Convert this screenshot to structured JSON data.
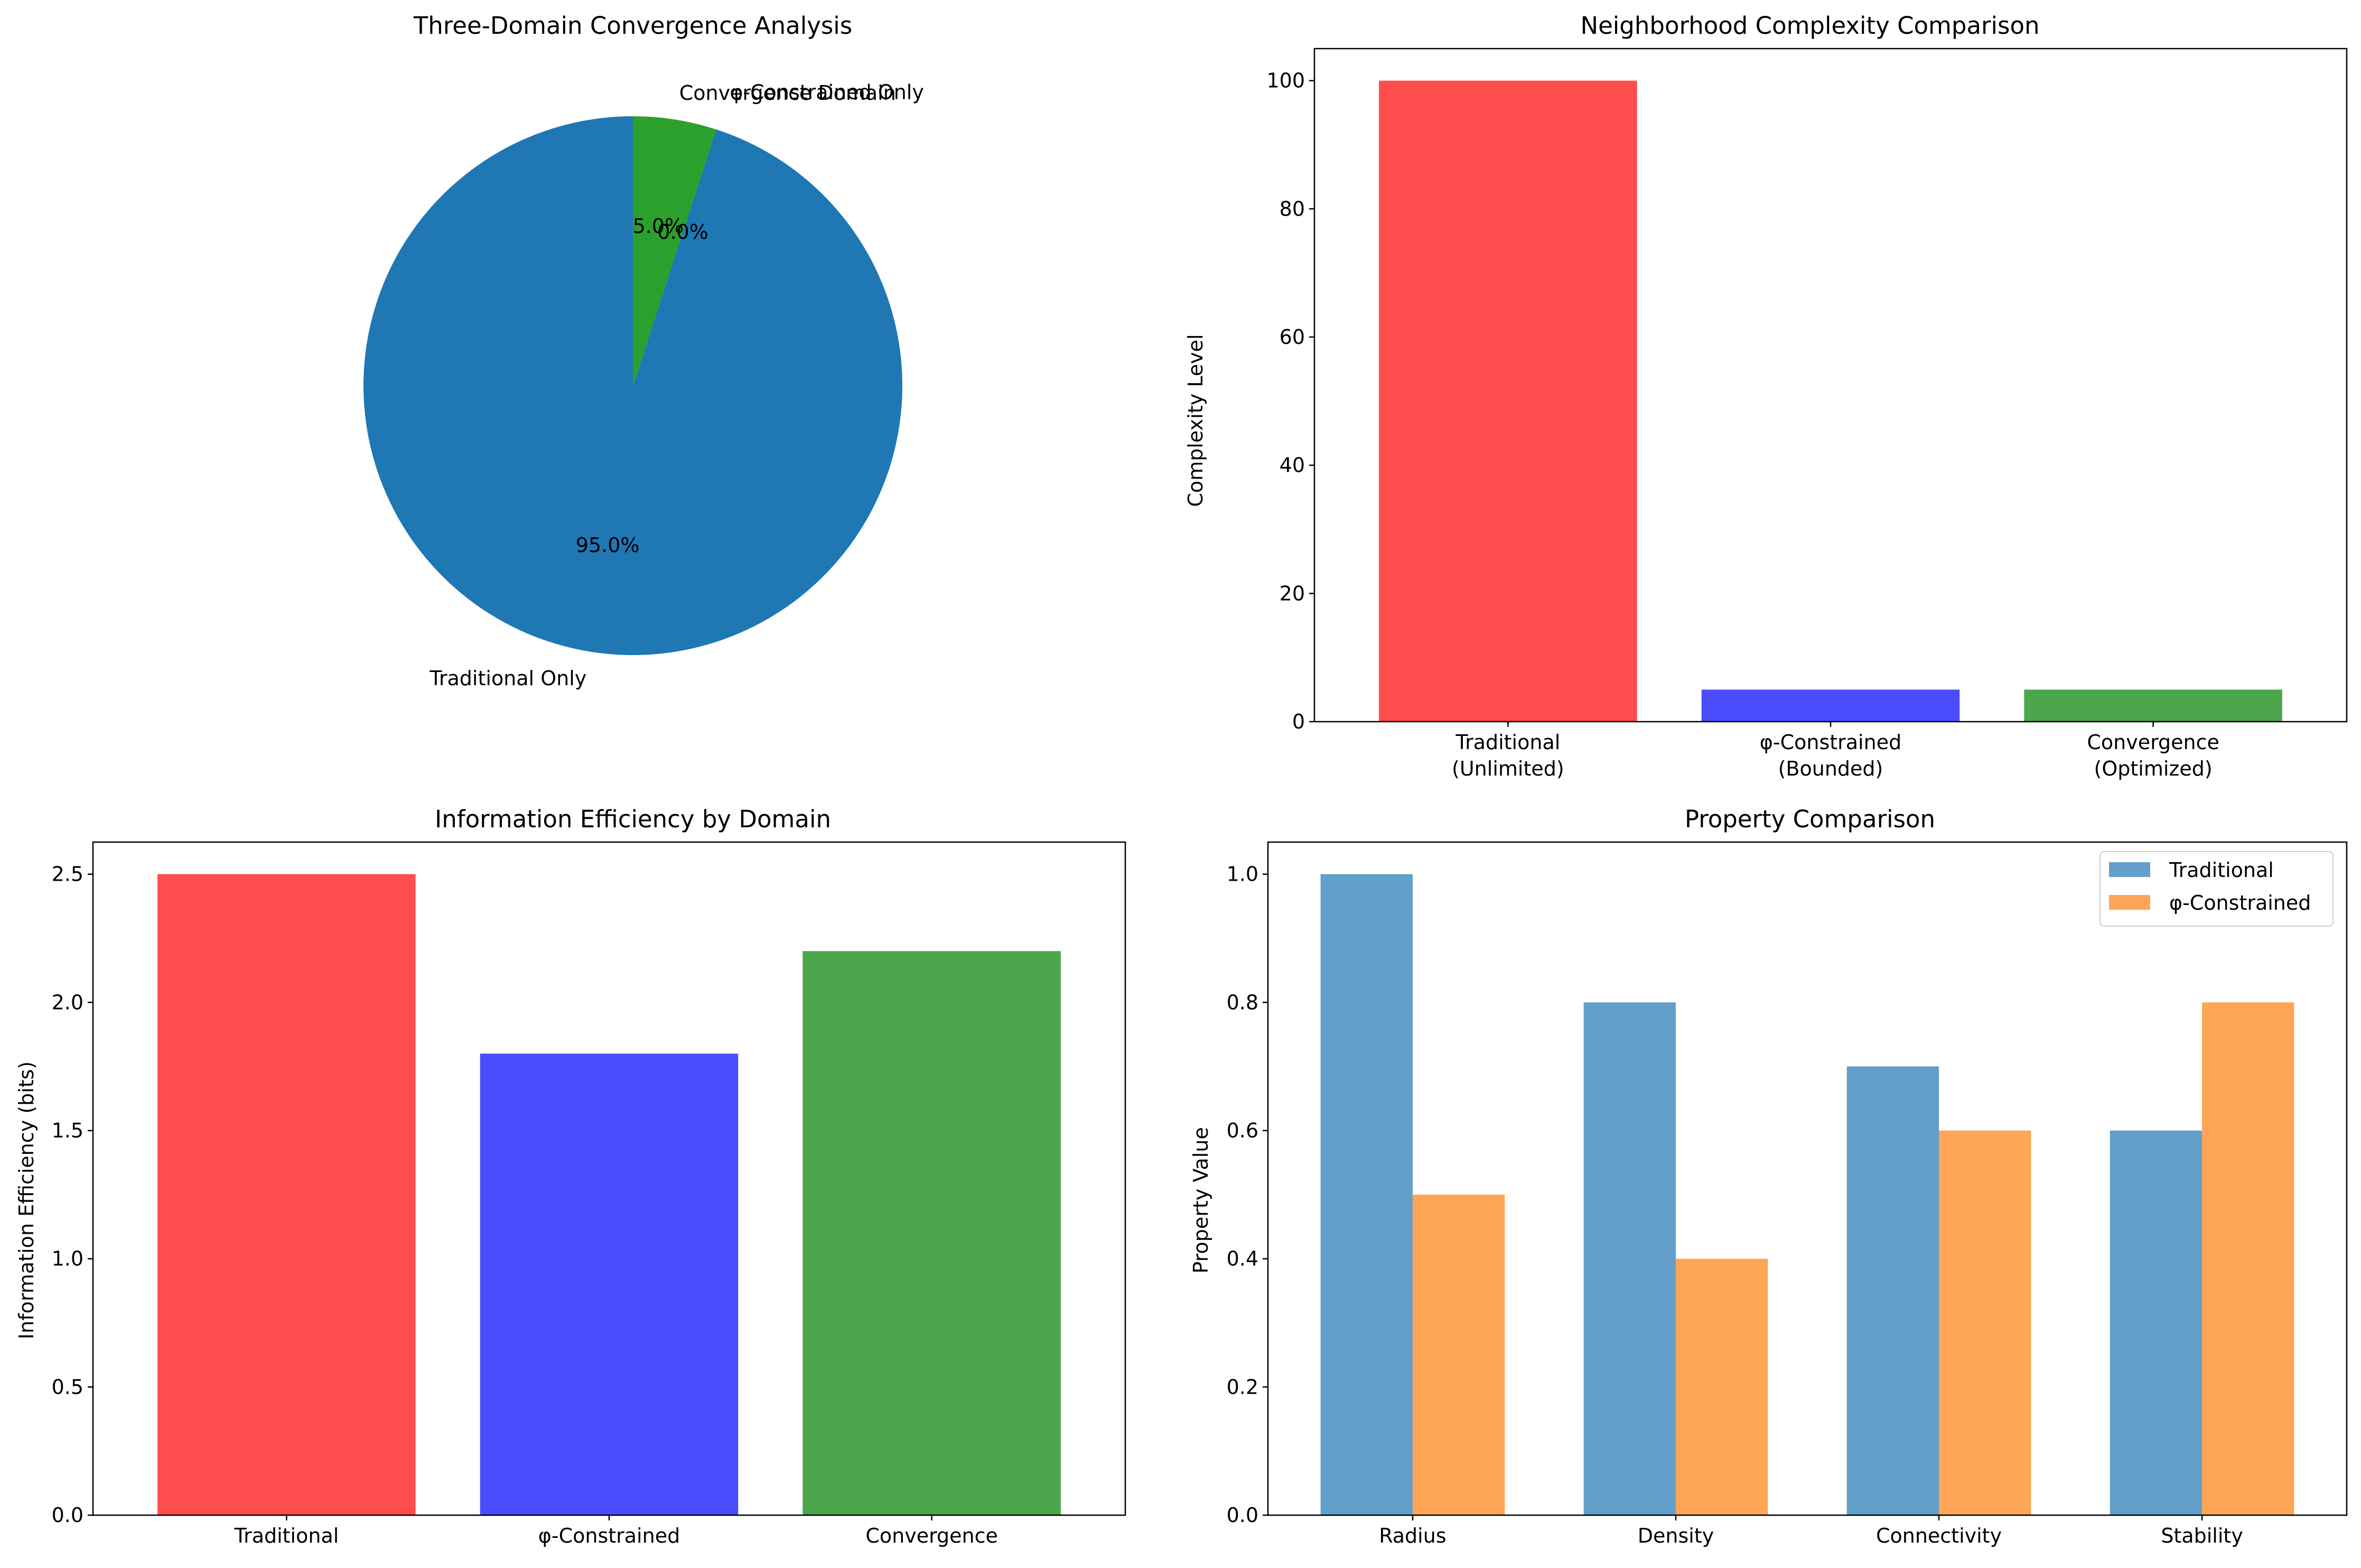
{
  "chart_data": [
    {
      "type": "pie",
      "title": "Three-Domain Convergence Analysis",
      "slices": [
        {
          "label": "Traditional Only",
          "value": 95.0,
          "pct_label": "95.0%",
          "color": "#1f77b4"
        },
        {
          "label": "φ-Constrained Only",
          "value": 0.0,
          "pct_label": "0.0%",
          "color": "#ff7f0e"
        },
        {
          "label": "Convergence Domain",
          "value": 5.0,
          "pct_label": "5.0%",
          "color": "#2ca02c"
        }
      ],
      "start_angle": 90
    },
    {
      "type": "bar",
      "title": "Neighborhood Complexity Comparison",
      "categories": [
        [
          "Traditional",
          "(Unlimited)"
        ],
        [
          "φ-Constrained",
          "(Bounded)"
        ],
        [
          "Convergence",
          "(Optimized)"
        ]
      ],
      "values": [
        100,
        5,
        5
      ],
      "colors": [
        "#ff4c4c",
        "#4c4cff",
        "#4ca64c"
      ],
      "xlabel": "",
      "ylabel": "Complexity Level",
      "ylim": [
        0,
        105
      ],
      "yticks": [
        0,
        20,
        40,
        60,
        80,
        100
      ],
      "ytick_labels": [
        "0",
        "20",
        "40",
        "60",
        "80",
        "100"
      ]
    },
    {
      "type": "bar",
      "title": "Information Efficiency by Domain",
      "categories": [
        [
          "Traditional"
        ],
        [
          "φ-Constrained"
        ],
        [
          "Convergence"
        ]
      ],
      "values": [
        2.5,
        1.8,
        2.2
      ],
      "colors": [
        "#ff4c4c",
        "#4c4cff",
        "#4ca64c"
      ],
      "xlabel": "",
      "ylabel": "Information Efficiency (bits)",
      "ylim": [
        0,
        2.625
      ],
      "yticks": [
        0,
        0.5,
        1.0,
        1.5,
        2.0,
        2.5
      ],
      "ytick_labels": [
        "0.0",
        "0.5",
        "1.0",
        "1.5",
        "2.0",
        "2.5"
      ]
    },
    {
      "type": "bar",
      "title": "Property Comparison",
      "categories": [
        "Radius",
        "Density",
        "Connectivity",
        "Stability"
      ],
      "series": [
        {
          "name": "Traditional",
          "values": [
            1.0,
            0.8,
            0.7,
            0.6
          ],
          "color": "#629fca"
        },
        {
          "name": "φ-Constrained",
          "values": [
            0.5,
            0.4,
            0.6,
            0.8
          ],
          "color": "#ffa556"
        }
      ],
      "xlabel": "",
      "ylabel": "Property Value",
      "ylim": [
        0,
        1.05
      ],
      "yticks": [
        0,
        0.2,
        0.4,
        0.6,
        0.8,
        1.0
      ],
      "ytick_labels": [
        "0.0",
        "0.2",
        "0.4",
        "0.6",
        "0.8",
        "1.0"
      ],
      "legend": "top-right"
    }
  ]
}
